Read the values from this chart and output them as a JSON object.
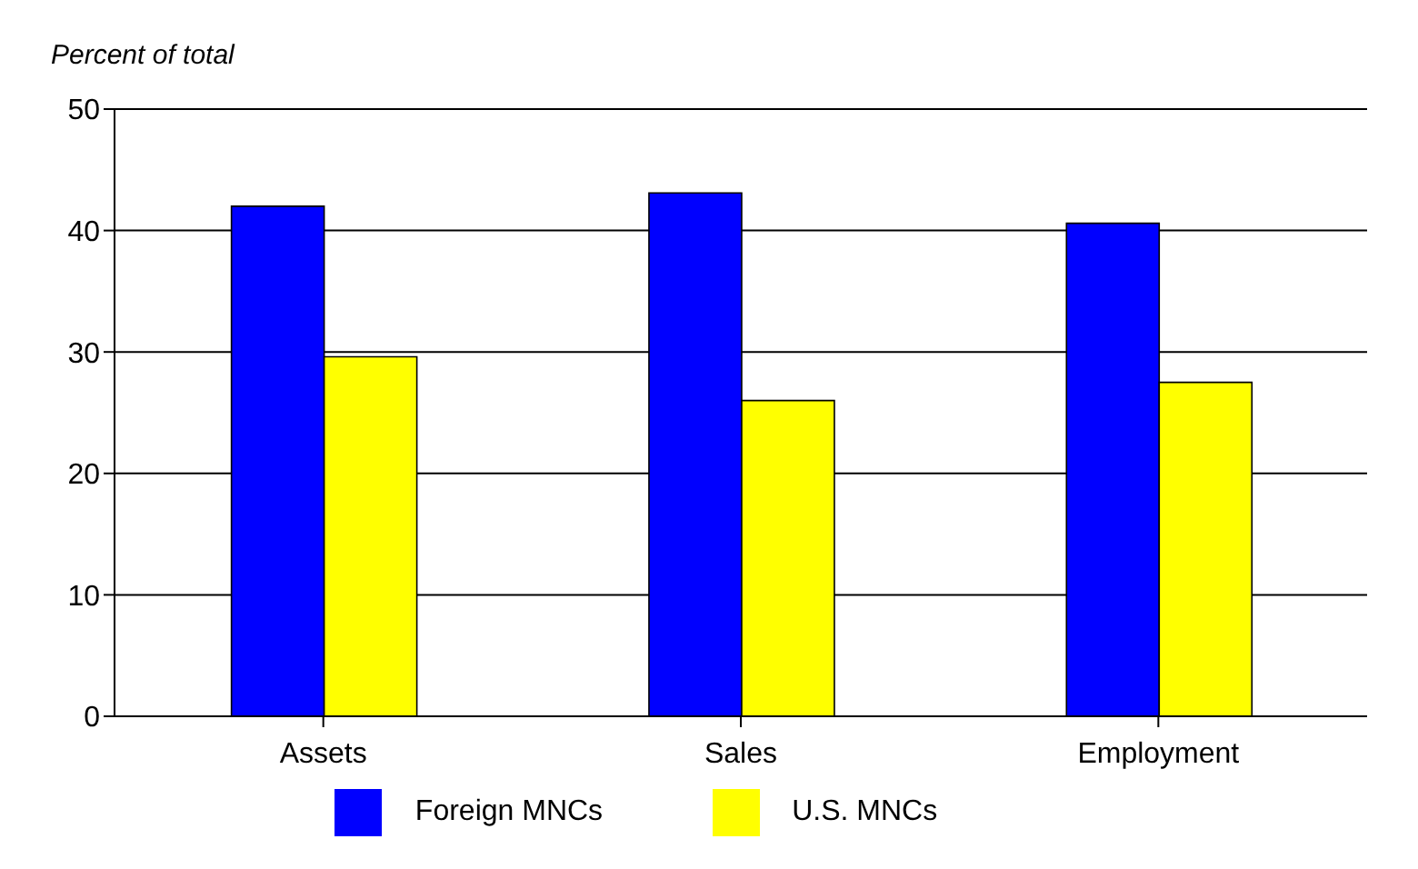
{
  "chart_data": {
    "type": "bar",
    "ylabel": "Percent of total",
    "categories": [
      "Assets",
      "Sales",
      "Employment"
    ],
    "series": [
      {
        "name": "Foreign MNCs",
        "color": "#0000ff",
        "values": [
          42.0,
          43.1,
          40.6
        ]
      },
      {
        "name": "U.S. MNCs",
        "color": "#ffff00",
        "values": [
          29.6,
          26.0,
          27.5
        ]
      }
    ],
    "ylim": [
      0,
      50
    ],
    "yticks": [
      0,
      10,
      20,
      30,
      40,
      50
    ],
    "grid": "y",
    "legend": "bottom"
  }
}
